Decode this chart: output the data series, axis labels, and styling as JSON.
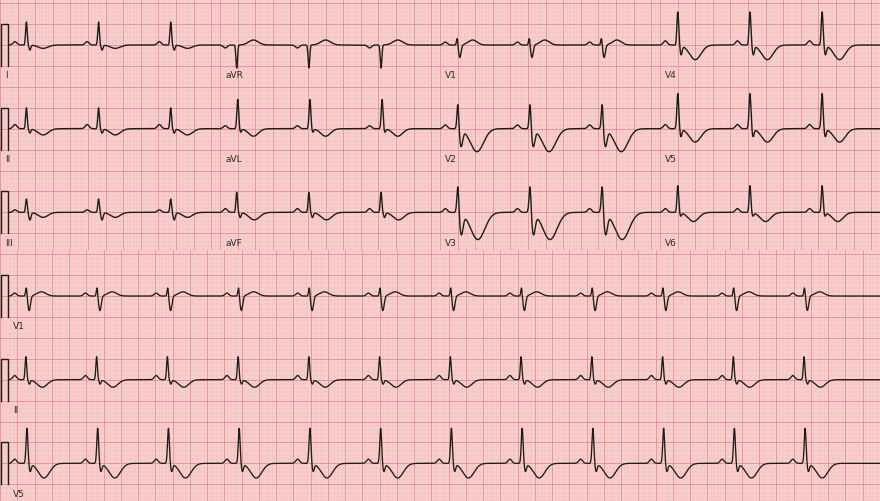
{
  "bg_color": "#f9d0d0",
  "grid_major_color": "#e89090",
  "grid_minor_color": "#f4b8b8",
  "line_color": "#1c1c1c",
  "line_width": 1.0,
  "fig_width": 8.8,
  "fig_height": 5.02,
  "dpi": 100,
  "label_color": "#2a2a2a",
  "label_fontsize": 6.5,
  "rr_interval": 0.82,
  "short_dur": 2.5,
  "long_dur": 10.2,
  "ylim": [
    -0.9,
    1.1
  ],
  "leads_top": [
    [
      "I",
      "aVR",
      "V1",
      "V4"
    ],
    [
      "II",
      "aVL",
      "V2",
      "V5"
    ],
    [
      "III",
      "aVF",
      "V3",
      "V6"
    ]
  ],
  "leads_bottom": [
    "V1",
    "II",
    "V5"
  ]
}
